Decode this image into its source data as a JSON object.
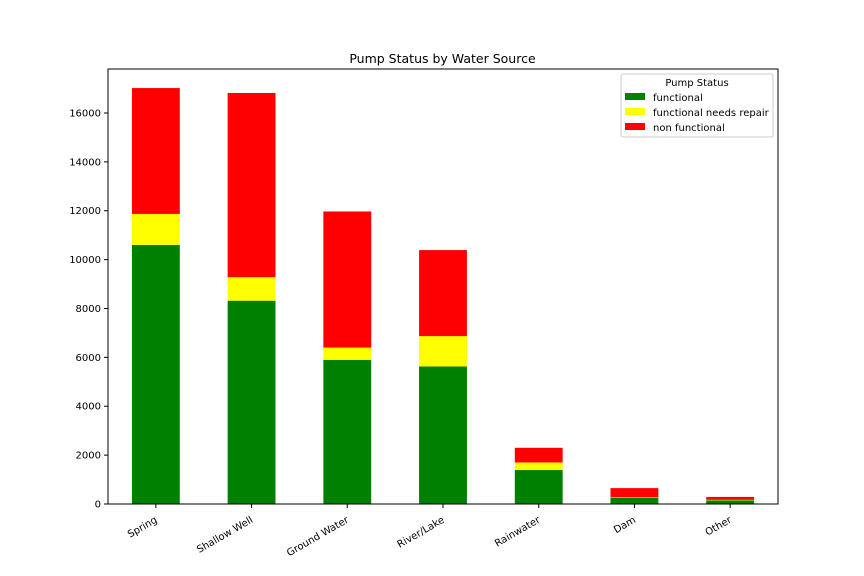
{
  "chart_data": {
    "type": "bar",
    "stacked": true,
    "title": "Pump Status by Water Source",
    "xlabel": "",
    "ylabel": "",
    "categories": [
      "Spring",
      "Shallow Well",
      "Ground Water",
      "River/Lake",
      "Rainwater",
      "Dam",
      "Other"
    ],
    "series": [
      {
        "name": "functional",
        "color": "#008000",
        "values": [
          10600,
          8320,
          5900,
          5630,
          1390,
          250,
          150
        ]
      },
      {
        "name": "functional needs repair",
        "color": "#ffff00",
        "values": [
          1270,
          960,
          500,
          1240,
          310,
          20,
          20
        ]
      },
      {
        "name": "non functional",
        "color": "#ff0000",
        "values": [
          5150,
          7540,
          5570,
          3520,
          600,
          380,
          120
        ]
      }
    ],
    "ylim": [
      0,
      17800
    ],
    "yticks": [
      0,
      2000,
      4000,
      6000,
      8000,
      10000,
      12000,
      14000,
      16000
    ],
    "grid": false,
    "legend": {
      "title": "Pump Status",
      "position": "top-right"
    }
  }
}
